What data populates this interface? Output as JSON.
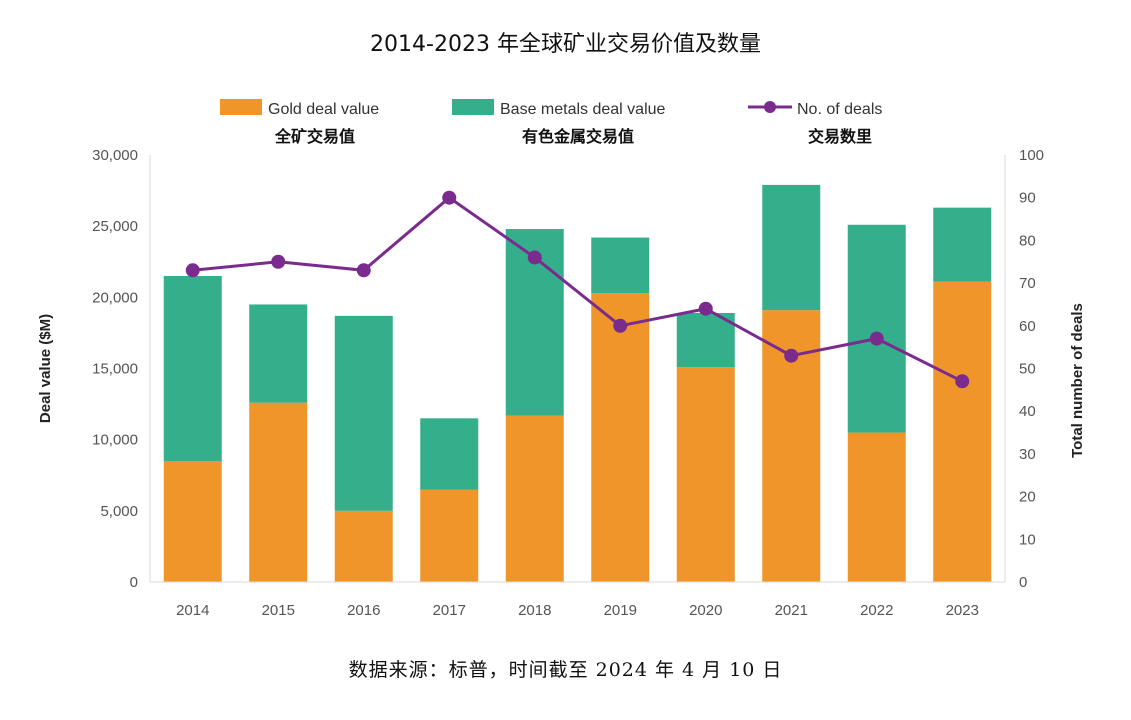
{
  "title": "2014-2023 年全球矿业交易价值及数量",
  "source": "数据来源：标普，时间截至 2024 年 4 月 10 日",
  "colors": {
    "gold": "#EF9529",
    "base": "#35AE8C",
    "deals": "#7B2B8E"
  },
  "chart_data": {
    "type": "bar",
    "stacked": true,
    "categories": [
      "2014",
      "2015",
      "2016",
      "2017",
      "2018",
      "2019",
      "2020",
      "2021",
      "2022",
      "2023"
    ],
    "series": [
      {
        "name": "Gold deal value",
        "name_cn": "全矿交易值",
        "axis": "left",
        "values": [
          8500,
          12600,
          5000,
          6500,
          11700,
          20300,
          15100,
          19100,
          10500,
          21100
        ]
      },
      {
        "name": "Base metals deal value",
        "name_cn": "有色金属交易值",
        "axis": "left",
        "values": [
          13000,
          6900,
          13700,
          5000,
          13100,
          3900,
          3800,
          8800,
          14600,
          5200
        ]
      },
      {
        "name": "No. of deals",
        "name_cn": "交易数里",
        "axis": "right",
        "type": "line",
        "values": [
          73,
          75,
          73,
          90,
          76,
          60,
          64,
          53,
          57,
          47
        ]
      }
    ],
    "ylabel": "Deal value ($M)",
    "y2label": "Total number of deals",
    "ylim": [
      0,
      30000
    ],
    "y2lim": [
      0,
      100
    ],
    "yticks": [
      "0",
      "5,000",
      "10,000",
      "15,000",
      "20,000",
      "25,000",
      "30,000"
    ],
    "y2ticks": [
      "0",
      "10",
      "20",
      "30",
      "40",
      "50",
      "60",
      "70",
      "80",
      "90",
      "100"
    ],
    "legend_position": "top",
    "grid": false
  }
}
